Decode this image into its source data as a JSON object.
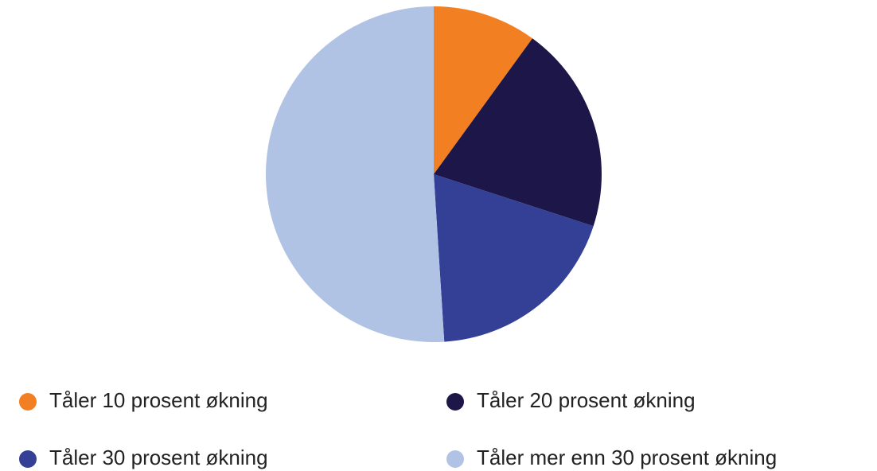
{
  "chart_data": {
    "type": "pie",
    "categories": [
      "Tåler 10 prosent økning",
      "Tåler 20 prosent økning",
      "Tåler 30 prosent økning",
      "Tåler mer enn 30 prosent økning"
    ],
    "values": [
      10,
      20,
      19,
      51
    ],
    "colors": [
      "#f28023",
      "#1d1648",
      "#343f96",
      "#b1c3e4"
    ],
    "legend": "bottom"
  }
}
